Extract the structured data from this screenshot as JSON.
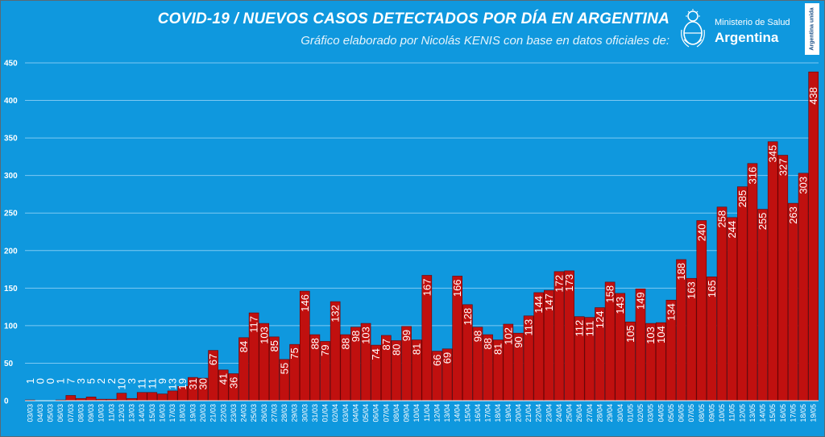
{
  "title": "COVID-19  /  NUEVOS CASOS DETECTADOS POR DÍA EN ARGENTINA",
  "subtitle": "Gráfico elaborado por Nicolás KENIS con base en datos oficiales de:",
  "logo": {
    "ministry": "Ministerio de Salud",
    "country": "Argentina"
  },
  "badge": "Argentina unida",
  "colors": {
    "background": "#0f98de",
    "bar": "#c0100f",
    "bar_border": "#6b0000",
    "grid": "#7ec9f2",
    "text": "#ffffff"
  },
  "chart_data": {
    "type": "bar",
    "title": "COVID-19  /  NUEVOS CASOS DETECTADOS POR DÍA EN ARGENTINA",
    "xlabel": "",
    "ylabel": "",
    "ylim": [
      0,
      450
    ],
    "yticks": [
      0,
      50,
      100,
      150,
      200,
      250,
      300,
      350,
      400,
      450
    ],
    "grid": true,
    "legend": "none",
    "categories": [
      "03/03",
      "04/03",
      "05/03",
      "06/03",
      "07/03",
      "08/03",
      "09/03",
      "10/03",
      "11/03",
      "12/03",
      "13/03",
      "14/03",
      "15/03",
      "16/03",
      "17/03",
      "18/03",
      "19/03",
      "20/03",
      "21/03",
      "22/03",
      "23/03",
      "24/03",
      "25/03",
      "26/03",
      "27/03",
      "28/03",
      "29/03",
      "30/03",
      "31/03",
      "01/04",
      "02/04",
      "03/04",
      "04/04",
      "05/04",
      "06/04",
      "07/04",
      "08/04",
      "09/04",
      "10/04",
      "11/04",
      "12/04",
      "13/04",
      "14/04",
      "15/04",
      "16/04",
      "17/04",
      "18/04",
      "19/04",
      "20/04",
      "21/04",
      "22/04",
      "23/04",
      "24/04",
      "25/04",
      "26/04",
      "27/04",
      "28/04",
      "29/04",
      "30/04",
      "01/05",
      "02/05",
      "03/05",
      "04/05",
      "05/05",
      "06/05",
      "07/05",
      "08/05",
      "09/05",
      "10/05",
      "11/05",
      "12/05",
      "13/05",
      "14/05",
      "15/05",
      "16/05",
      "17/05",
      "18/05",
      "19/05"
    ],
    "values": [
      1,
      0,
      0,
      1,
      7,
      3,
      5,
      2,
      2,
      10,
      3,
      11,
      11,
      9,
      13,
      19,
      31,
      30,
      67,
      41,
      36,
      84,
      117,
      103,
      85,
      55,
      75,
      146,
      88,
      79,
      132,
      88,
      98,
      103,
      74,
      87,
      80,
      99,
      81,
      167,
      66,
      69,
      166,
      128,
      98,
      88,
      81,
      102,
      90,
      113,
      144,
      147,
      172,
      173,
      112,
      111,
      124,
      158,
      143,
      105,
      149,
      103,
      104,
      134,
      188,
      163,
      240,
      165,
      258,
      244,
      285,
      316,
      255,
      345,
      327,
      263,
      303,
      438
    ]
  }
}
